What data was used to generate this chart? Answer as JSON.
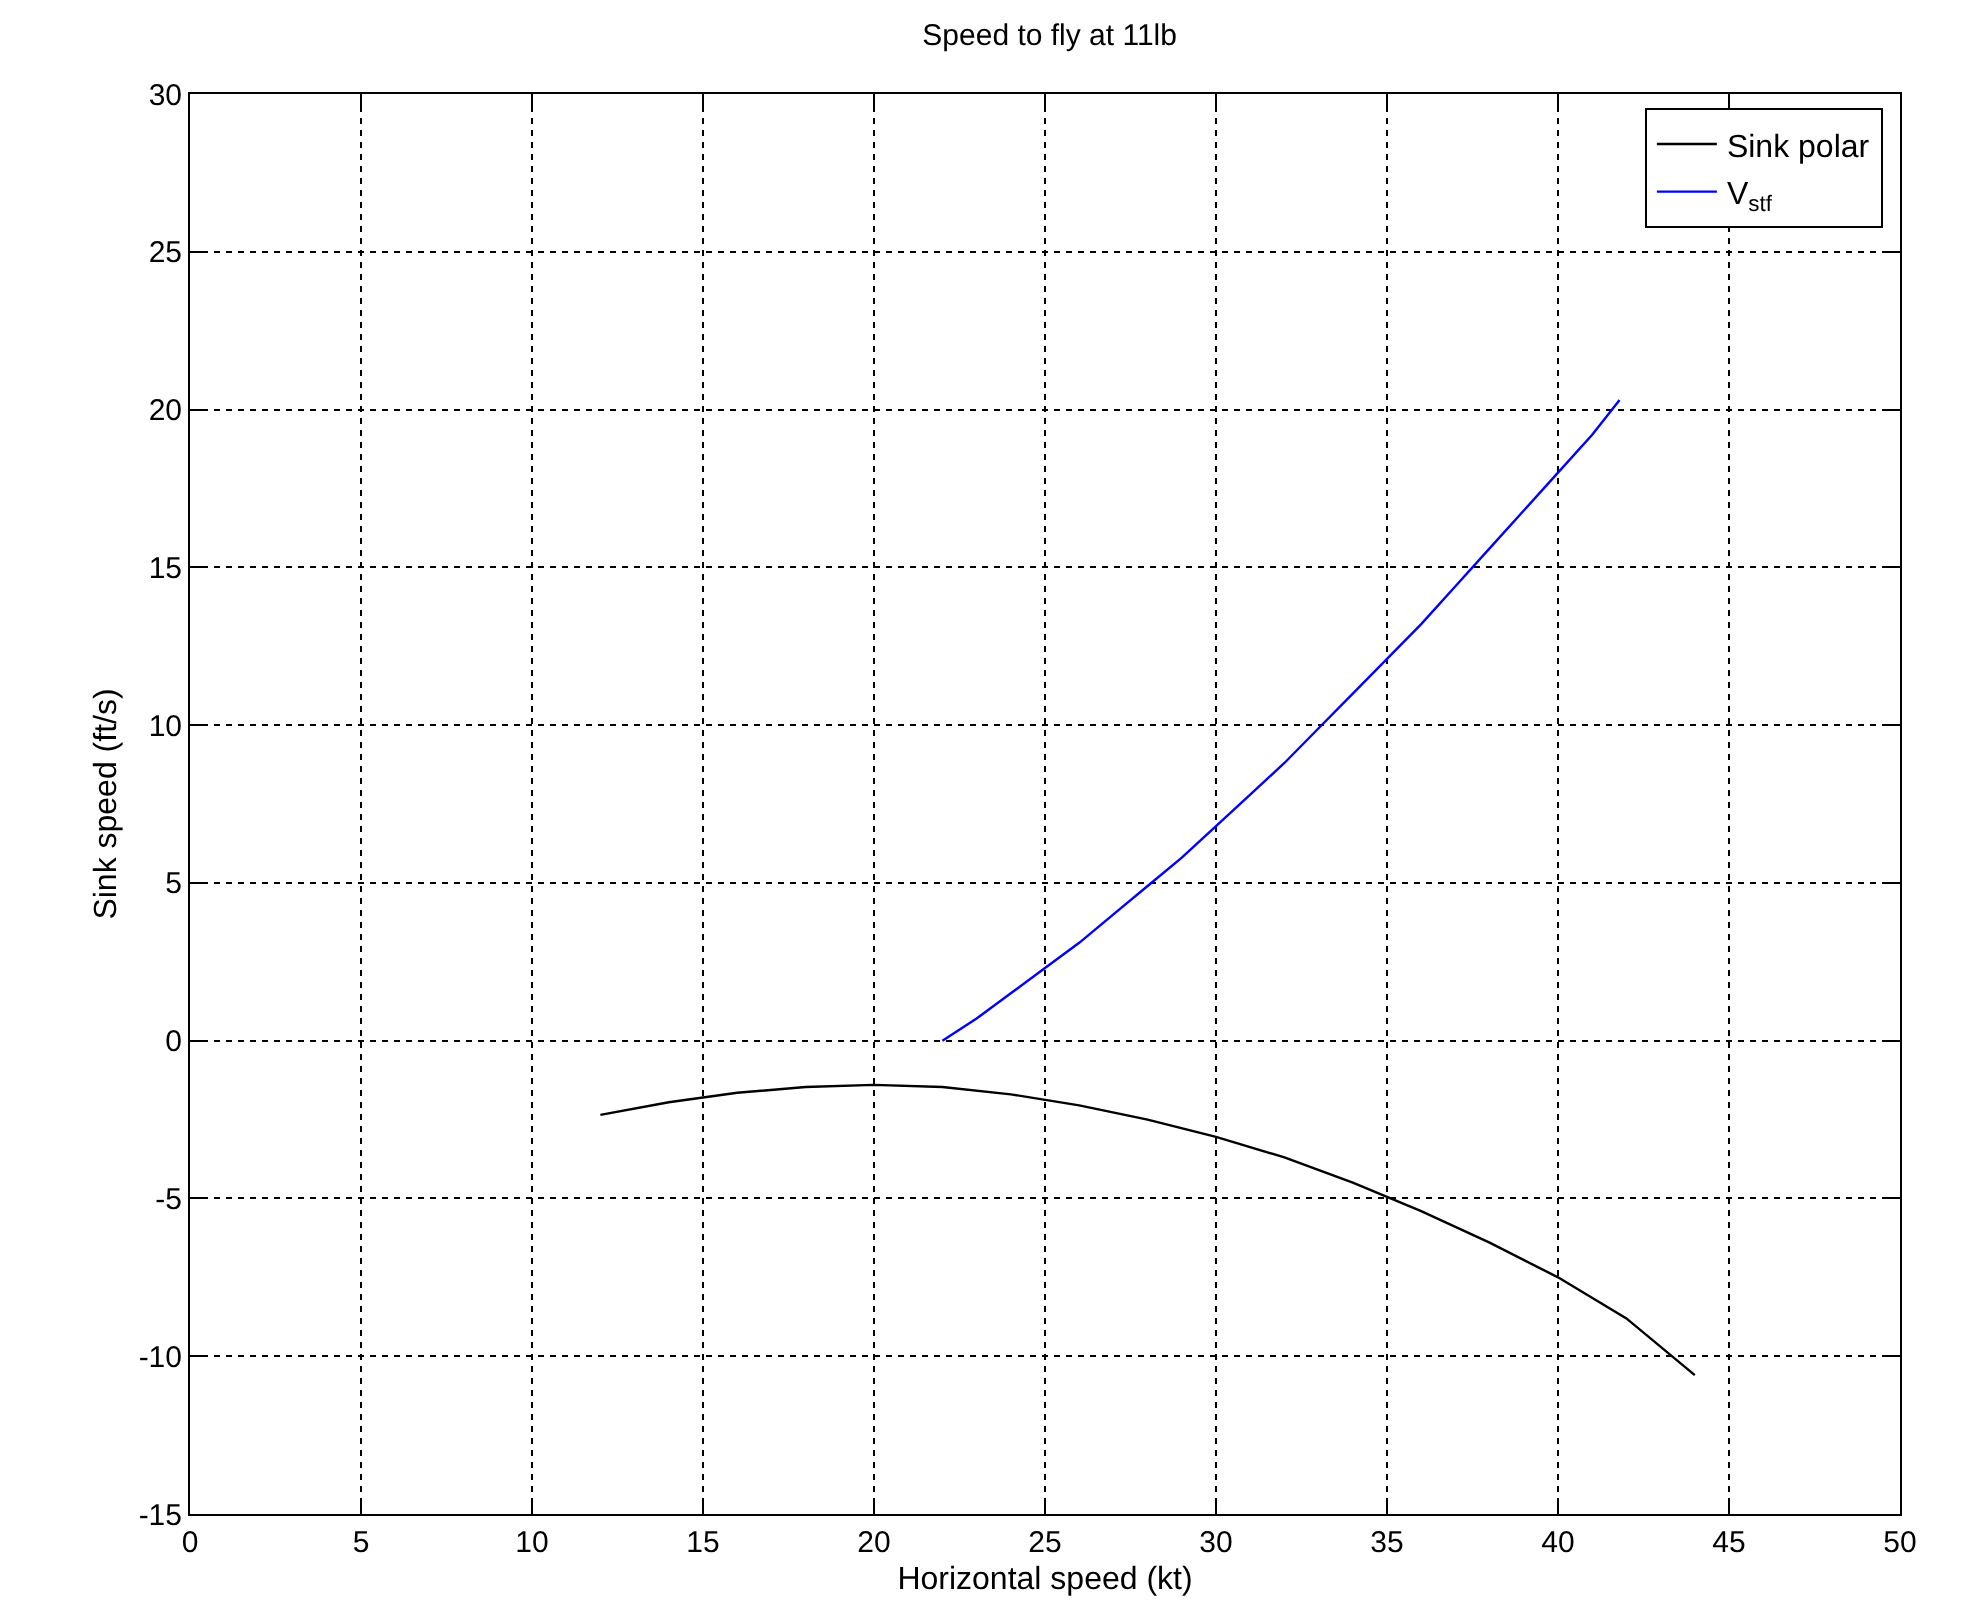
{
  "chart_data": {
    "type": "line",
    "title": "Speed to fly at 11lb",
    "xlabel": "Horizontal speed (kt)",
    "ylabel": "Sink speed (ft/s)",
    "xlim": [
      0,
      50
    ],
    "xticks": [
      0,
      5,
      10,
      15,
      20,
      25,
      30,
      35,
      40,
      45,
      50
    ],
    "ylim": [
      -15,
      30
    ],
    "yticks": [
      -15,
      -10,
      -5,
      0,
      5,
      10,
      15,
      20,
      25,
      30
    ],
    "grid": true,
    "legend": "top right",
    "line_style": "solid",
    "marker": "none",
    "series": [
      {
        "name": "Sink polar",
        "color": "#000000",
        "x": [
          12,
          14,
          16,
          18,
          20,
          22,
          24,
          26,
          28,
          30,
          32,
          34,
          36,
          38,
          40,
          42,
          44
        ],
        "values": [
          -2.35,
          -1.95,
          -1.65,
          -1.47,
          -1.4,
          -1.47,
          -1.7,
          -2.05,
          -2.5,
          -3.05,
          -3.7,
          -4.5,
          -5.4,
          -6.4,
          -7.5,
          -8.8,
          -10.6
        ]
      },
      {
        "name": "V$_{stf}$",
        "color": "#0000ff",
        "x": [
          22,
          23,
          24,
          25,
          26,
          27,
          28,
          29,
          30,
          31,
          32,
          33,
          34,
          35,
          36,
          37,
          38,
          39,
          40,
          41,
          41.8
        ],
        "values": [
          0,
          0.7,
          1.5,
          2.3,
          3.1,
          4.0,
          4.9,
          5.8,
          6.8,
          7.8,
          8.8,
          9.9,
          11.0,
          12.1,
          13.2,
          14.4,
          15.6,
          16.8,
          18.0,
          19.2,
          20.3
        ]
      }
    ]
  }
}
